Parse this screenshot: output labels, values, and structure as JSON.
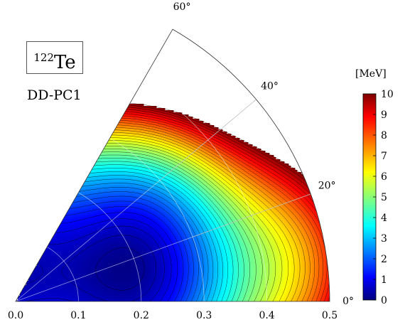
{
  "chart_data": {
    "type": "heatmap",
    "subtype": "polar-sector-contour",
    "nucleus": {
      "mass_number": "122",
      "symbol": "Te"
    },
    "functional": "DD-PC1",
    "radial_axis": {
      "range": [
        0.0,
        0.5
      ],
      "ticks": [
        0.0,
        0.1,
        0.2,
        0.3,
        0.4,
        0.5
      ],
      "tick_labels": [
        "0.0",
        "0.1",
        "0.2",
        "0.3",
        "0.4",
        "0.5"
      ]
    },
    "angular_axis": {
      "range_deg": [
        0,
        60
      ],
      "ticks_deg": [
        0,
        20,
        40,
        60
      ],
      "tick_labels": [
        "0°",
        "20°",
        "40°",
        "60°"
      ]
    },
    "colorbar": {
      "unit": "[MeV]",
      "range": [
        0,
        10
      ],
      "ticks": [
        0,
        1,
        2,
        3,
        4,
        5,
        6,
        7,
        8,
        9,
        10
      ],
      "tick_labels": [
        "0",
        "1",
        "2",
        "3",
        "4",
        "5",
        "6",
        "7",
        "8",
        "9",
        "10"
      ],
      "colormap": "jet"
    },
    "contour_interval_mev": 0.25,
    "energy_max_shown": 10,
    "minimum": {
      "beta": 0.1,
      "gamma_deg": 30,
      "energy": 0.0
    },
    "grid": true
  }
}
